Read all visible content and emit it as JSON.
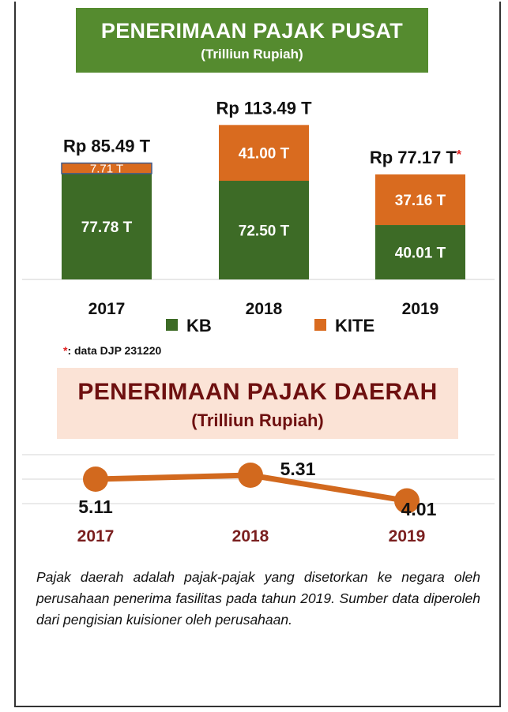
{
  "chart_data": [
    {
      "type": "bar",
      "stacked": true,
      "title": "PENERIMAAN PAJAK PUSAT",
      "subtitle": "(Trilliun Rupiah)",
      "categories": [
        "2017",
        "2018",
        "2019"
      ],
      "series": [
        {
          "name": "KB",
          "values": [
            77.78,
            72.5,
            40.01
          ],
          "labels": [
            "77.78  T",
            "72.50 T",
            "40.01 T"
          ],
          "color": "#3d6b26"
        },
        {
          "name": "KITE",
          "values": [
            7.71,
            41.0,
            37.16
          ],
          "labels": [
            "7.71 T",
            "41.00  T",
            "37.16 T"
          ],
          "color": "#d96b1f"
        }
      ],
      "totals": [
        "Rp 85.49 T",
        "Rp 113.49 T",
        "Rp 77.17 T"
      ],
      "total_marks": [
        "",
        "",
        "*"
      ],
      "legend": "bottom",
      "footnote": {
        "star": "*",
        "text": ": data DJP 231220"
      }
    },
    {
      "type": "line",
      "title": "PENERIMAAN PAJAK DAERAH",
      "subtitle": "(Trilliun Rupiah)",
      "categories": [
        "2017",
        "2018",
        "2019"
      ],
      "values": [
        5.11,
        5.31,
        4.01
      ],
      "color": "#d2691e",
      "grid": true
    }
  ],
  "note": "Pajak daerah adalah pajak-pajak yang disetorkan ke negara oleh perusahaan penerima fasilitas pada tahun 2019. Sumber data diperoleh dari pengisian kuisioner oleh perusahaan."
}
